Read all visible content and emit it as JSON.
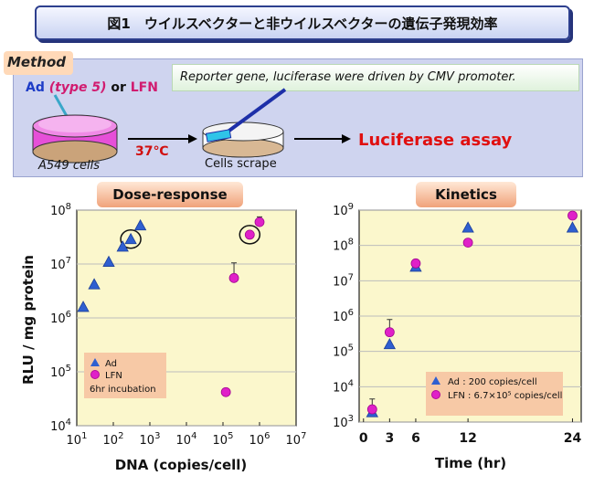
{
  "header": {
    "title": "図1　ウイルスベクターと非ウイルスベクターの遺伝子発現効率"
  },
  "method": {
    "tag": "Method",
    "reporter": "Reporter gene, luciferase were driven by CMV promoter.",
    "vectors": {
      "ad": "Ad",
      "type": "(type 5)",
      "or": "or",
      "lfn": "LFN"
    },
    "cells": "A549 cells",
    "temperature": "37℃",
    "scrape": "Cells scrape",
    "assay": "Luciferase assay"
  },
  "colors": {
    "ad": "#2f5fd0",
    "lfn": "#e020c8",
    "plot_bg": "#fbf7cc",
    "accent_red": "#e01010"
  },
  "icons": [
    "dish-icon",
    "scrape-dish-icon",
    "arrow-icon"
  ],
  "chart_data": [
    {
      "type": "scatter",
      "panel_label": "Dose-response",
      "xlabel": "DNA  (copies/cell)",
      "ylabel": "RLU / mg protein",
      "xscale": "log",
      "yscale": "log",
      "xlim": [
        10,
        10000000
      ],
      "ylim": [
        10000,
        100000000
      ],
      "x_ticks": [
        10,
        100,
        1000,
        10000,
        100000,
        1000000,
        10000000
      ],
      "y_ticks": [
        10000,
        100000,
        1000000,
        10000000,
        100000000
      ],
      "legend": {
        "position": "bottom-left",
        "entries": [
          "Ad",
          "LFN"
        ],
        "note": "6hr incubation"
      },
      "series": [
        {
          "name": "Ad",
          "marker": "triangle",
          "x": [
            15,
            30,
            75,
            180,
            300,
            550
          ],
          "y": [
            1600000,
            4200000,
            11000000,
            21000000,
            29000000,
            52000000
          ]
        },
        {
          "name": "LFN",
          "marker": "circle",
          "x": [
            120000,
            200000,
            540000,
            1000000
          ],
          "y": [
            42000,
            5500000,
            35000000,
            60000000
          ],
          "error_high": [
            null,
            10500000,
            null,
            75000000
          ]
        }
      ],
      "highlighted": [
        {
          "series": "Ad",
          "x": 300
        },
        {
          "series": "LFN",
          "x": 540000
        }
      ]
    },
    {
      "type": "scatter",
      "panel_label": "Kinetics",
      "xlabel": "Time  (hr)",
      "ylabel": "",
      "yscale": "log",
      "xlim": [
        -0.5,
        25
      ],
      "ylim": [
        1000,
        1000000000
      ],
      "x_ticks": [
        0,
        3,
        6,
        12,
        24
      ],
      "y_ticks": [
        1000,
        10000,
        100000,
        1000000,
        10000000,
        100000000,
        1000000000
      ],
      "legend": {
        "position": "bottom-right",
        "entries": [
          "Ad  : 200 copies/cell",
          "LFN : 6.7×10⁵ copies/cell"
        ]
      },
      "series": [
        {
          "name": "Ad : 200 copies/cell",
          "marker": "triangle",
          "x": [
            1,
            3,
            6,
            12,
            24
          ],
          "y": [
            1900,
            160000,
            25000000,
            320000000,
            320000000
          ]
        },
        {
          "name": "LFN : 6.7×10⁵ copies/cell",
          "marker": "circle",
          "x": [
            1,
            3,
            6,
            12,
            24
          ],
          "y": [
            2300,
            350000,
            31000000,
            120000000,
            700000000
          ],
          "error_high": [
            4500,
            800000,
            null,
            null,
            null
          ]
        }
      ]
    }
  ]
}
